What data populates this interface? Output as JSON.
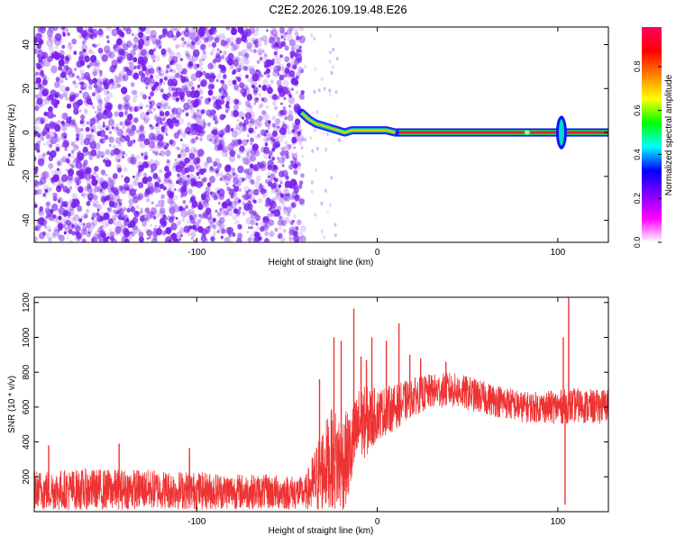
{
  "title": "C2E2.2026.109.19.48.E26",
  "colors": {
    "snr_line": "#ee3333",
    "scatter_purple": "#7a22ee",
    "colorbar_stops": [
      "#ffffff",
      "#ff00ff",
      "#8000ff",
      "#0000ff",
      "#00ffff",
      "#00ff00",
      "#ffff00",
      "#ff8000",
      "#ff0000",
      "#ff0060"
    ]
  },
  "chart_data": [
    {
      "type": "heatmap",
      "title": "",
      "xlabel": "Height of straight line (km)",
      "ylabel": "Frequency (Hz)",
      "xlim": [
        -190,
        128
      ],
      "ylim": [
        -50,
        48
      ],
      "xticks": [
        -100,
        0,
        100
      ],
      "xtick_labels": [
        "-100",
        "0",
        "100"
      ],
      "yticks": [
        -40,
        -20,
        0,
        20,
        40
      ],
      "ytick_labels": [
        "-40",
        "-20",
        "0",
        "20",
        "40"
      ],
      "noise_region_x": [
        -190,
        -41
      ],
      "carrier_frequency": 0,
      "carrier_trace": [
        {
          "x": -42,
          "y": 9
        },
        {
          "x": -38,
          "y": 6
        },
        {
          "x": -34,
          "y": 4
        },
        {
          "x": -30,
          "y": 3
        },
        {
          "x": -26,
          "y": 2
        },
        {
          "x": -22,
          "y": 1
        },
        {
          "x": -18,
          "y": 0
        },
        {
          "x": -14,
          "y": 1
        },
        {
          "x": -10,
          "y": 1
        },
        {
          "x": -5,
          "y": 1
        },
        {
          "x": 0,
          "y": 1
        },
        {
          "x": 5,
          "y": 1
        },
        {
          "x": 10,
          "y": 0
        }
      ],
      "disturbance": {
        "x": 102,
        "y_range": [
          -6,
          6
        ]
      },
      "colorbar": {
        "label": "Normalized spectral amplitude",
        "range": [
          0,
          0.98
        ],
        "ticks": [
          0.0,
          0.2,
          0.4,
          0.6,
          0.8
        ],
        "tick_labels": [
          "0.0",
          "0.2",
          "0.4",
          "0.6",
          "0.8"
        ]
      }
    },
    {
      "type": "line",
      "title": "",
      "xlabel": "Height of straight line (km)",
      "ylabel": "SNR (10 * v/v)",
      "xlim": [
        -190,
        128
      ],
      "ylim": [
        0,
        1230
      ],
      "xticks": [
        -100,
        0,
        100
      ],
      "xtick_labels": [
        "-100",
        "0",
        "100"
      ],
      "yticks": [
        200,
        400,
        600,
        800,
        1000,
        1200
      ],
      "ytick_labels": [
        "200",
        "400",
        "600",
        "800",
        "1000",
        "1200"
      ],
      "envelope": {
        "x": [
          -190,
          -160,
          -130,
          -100,
          -70,
          -45,
          -40,
          -35,
          -30,
          -25,
          -20,
          -15,
          -10,
          -5,
          0,
          10,
          20,
          30,
          40,
          50,
          60,
          70,
          80,
          90,
          100,
          110,
          120,
          128
        ],
        "mean": [
          120,
          125,
          130,
          120,
          115,
          110,
          105,
          160,
          250,
          300,
          280,
          330,
          500,
          520,
          560,
          600,
          660,
          690,
          700,
          680,
          650,
          630,
          600,
          600,
          600,
          610,
          600,
          610
        ],
        "spread": [
          120,
          120,
          115,
          110,
          100,
          100,
          90,
          200,
          250,
          300,
          300,
          250,
          220,
          200,
          150,
          130,
          110,
          100,
          100,
          100,
          95,
          95,
          90,
          90,
          100,
          100,
          100,
          100
        ]
      },
      "spikes": [
        {
          "x": -182,
          "y": 380
        },
        {
          "x": -143,
          "y": 390
        },
        {
          "x": -104,
          "y": 365
        },
        {
          "x": -32,
          "y": 760
        },
        {
          "x": -24,
          "y": 1000
        },
        {
          "x": -20,
          "y": 980
        },
        {
          "x": -13,
          "y": 1165
        },
        {
          "x": -9,
          "y": 890
        },
        {
          "x": -6,
          "y": 870
        },
        {
          "x": -3,
          "y": 1000
        },
        {
          "x": 5,
          "y": 980
        },
        {
          "x": 12,
          "y": 1080
        },
        {
          "x": 18,
          "y": 900
        },
        {
          "x": 24,
          "y": 880
        },
        {
          "x": 38,
          "y": 860
        },
        {
          "x": 103,
          "y": 1000
        },
        {
          "x": 106,
          "y": 1230
        },
        {
          "x": 104,
          "y": 40
        }
      ]
    }
  ]
}
